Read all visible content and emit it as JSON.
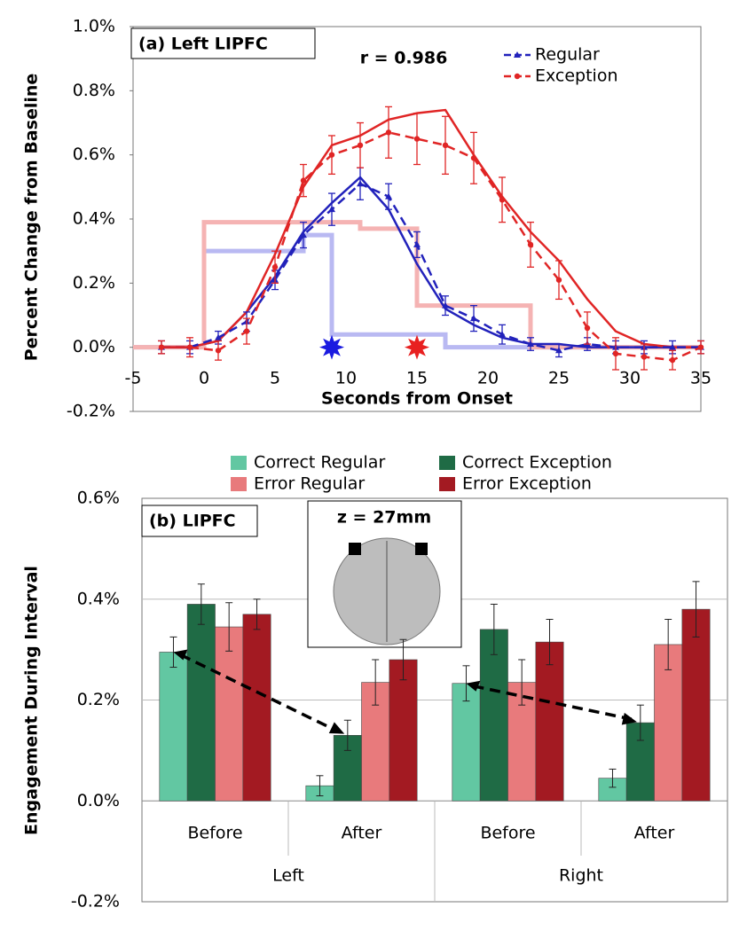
{
  "chart_data": [
    {
      "type": "line",
      "title": "(a) Left LIPFC",
      "annotation": "r = 0.986",
      "xlabel": "Seconds from Onset",
      "ylabel": "Percent Change from Baseline",
      "xlim": [
        -5,
        35
      ],
      "xticks": [
        -5,
        0,
        5,
        10,
        15,
        20,
        25,
        30,
        35
      ],
      "ylim": [
        -0.2,
        1.0
      ],
      "yticks": [
        {
          "value": -0.2,
          "label": "-0.2%"
        },
        {
          "value": 0,
          "label": "0.0%"
        },
        {
          "value": 0.2,
          "label": "0.2%"
        },
        {
          "value": 0.4,
          "label": "0.4%"
        },
        {
          "value": 0.6,
          "label": "0.6%"
        },
        {
          "value": 0.8,
          "label": "0.8%"
        },
        {
          "value": 1.0,
          "label": "1.0%"
        }
      ],
      "legend": "top-right",
      "grid": false,
      "x": [
        -3,
        -1,
        1,
        3,
        5,
        7,
        9,
        11,
        13,
        15,
        17,
        19,
        21,
        23,
        25,
        27,
        29,
        31,
        33,
        35
      ],
      "series": [
        {
          "name": "Regular",
          "color": "#2222bb",
          "dash": true,
          "marker": "triangle",
          "values": [
            0,
            0,
            0.03,
            0.08,
            0.21,
            0.35,
            0.43,
            0.51,
            0.47,
            0.32,
            0.13,
            0.09,
            0.04,
            0.01,
            -0.01,
            0.01,
            0,
            0,
            0,
            0
          ],
          "errors": [
            0.02,
            0.02,
            0.02,
            0.03,
            0.03,
            0.04,
            0.05,
            0.05,
            0.04,
            0.04,
            0.03,
            0.04,
            0.03,
            0.02,
            0.02,
            0.02,
            0.02,
            0.02,
            0.02,
            0.02
          ]
        },
        {
          "name": "Exception",
          "color": "#e02525",
          "dash": true,
          "marker": "circle",
          "values": [
            0,
            0,
            -0.01,
            0.05,
            0.25,
            0.52,
            0.6,
            0.63,
            0.67,
            0.65,
            0.63,
            0.59,
            0.46,
            0.32,
            0.21,
            0.06,
            -0.02,
            -0.03,
            -0.04,
            0
          ],
          "errors": [
            0.02,
            0.03,
            0.03,
            0.04,
            0.05,
            0.05,
            0.06,
            0.07,
            0.08,
            0.08,
            0.09,
            0.08,
            0.07,
            0.07,
            0.06,
            0.05,
            0.05,
            0.04,
            0.03,
            0.02
          ]
        },
        {
          "color": "#2222bb",
          "values": [
            0,
            0,
            0.02,
            0.11,
            0.22,
            0.36,
            0.45,
            0.53,
            0.43,
            0.26,
            0.12,
            0.07,
            0.03,
            0.01,
            0.01,
            0,
            0,
            0,
            0,
            0
          ]
        },
        {
          "color": "#e02525",
          "values": [
            0,
            0,
            0.02,
            0.11,
            0.29,
            0.5,
            0.63,
            0.66,
            0.71,
            0.73,
            0.74,
            0.6,
            0.47,
            0.36,
            0.27,
            0.15,
            0.05,
            0.01,
            0,
            0
          ]
        },
        {
          "color": "#b9b9f2",
          "step": true,
          "x": [
            -5,
            0,
            0,
            7,
            7,
            9,
            9,
            17,
            17,
            35
          ],
          "values": [
            0,
            0,
            0.3,
            0.3,
            0.35,
            0.35,
            0.04,
            0.04,
            0,
            0
          ]
        },
        {
          "color": "#f5b3b3",
          "step": true,
          "x": [
            -5,
            0,
            0,
            11,
            11,
            15,
            15,
            23,
            23,
            35
          ],
          "values": [
            0,
            0,
            0.39,
            0.39,
            0.37,
            0.37,
            0.13,
            0.13,
            0,
            0
          ]
        }
      ],
      "events": [
        {
          "x": 9,
          "color": "#1a1ae0"
        },
        {
          "x": 15,
          "color": "#e82020"
        }
      ]
    },
    {
      "type": "bar",
      "title": "(b) LIPFC",
      "annotation": "z = 27mm",
      "ylabel": "Engagement During Interval",
      "categories": [
        "Before",
        "After",
        "Before",
        "After"
      ],
      "groups": [
        "Left",
        "Right"
      ],
      "ylim": [
        -0.2,
        0.6
      ],
      "yticks": [
        {
          "value": -0.2,
          "label": "-0.2%"
        },
        {
          "value": 0,
          "label": "0.0%"
        },
        {
          "value": 0.2,
          "label": "0.2%"
        },
        {
          "value": 0.4,
          "label": "0.4%"
        },
        {
          "value": 0.6,
          "label": "0.6%"
        }
      ],
      "legend": "top",
      "grid": true,
      "series": [
        {
          "name": "Correct Regular",
          "color": "#62c7a2",
          "values": [
            0.295,
            0.03,
            0.233,
            0.045
          ],
          "errors": [
            0.03,
            0.02,
            0.035,
            0.018
          ]
        },
        {
          "name": "Correct Exception",
          "color": "#1f6b45",
          "values": [
            0.39,
            0.13,
            0.34,
            0.155
          ],
          "errors": [
            0.04,
            0.03,
            0.05,
            0.035
          ]
        },
        {
          "name": "Error Regular",
          "color": "#e87a7c",
          "values": [
            0.345,
            0.235,
            0.235,
            0.31
          ],
          "errors": [
            0.048,
            0.045,
            0.045,
            0.05
          ]
        },
        {
          "name": "Error Exception",
          "color": "#a31a22",
          "values": [
            0.37,
            0.28,
            0.315,
            0.38
          ],
          "errors": [
            0.03,
            0.04,
            0.045,
            0.055
          ]
        }
      ]
    }
  ]
}
